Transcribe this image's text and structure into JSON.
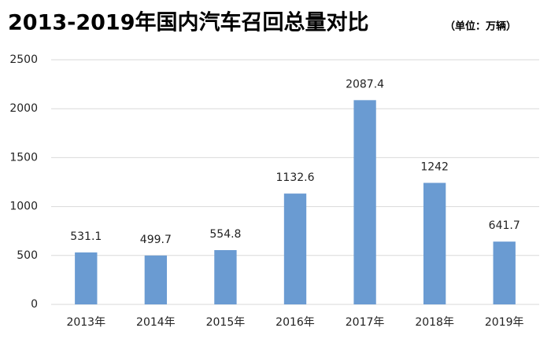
{
  "chart_data": {
    "type": "bar",
    "title": "2013-2019年国内汽车召回总量对比",
    "subtitle": "（单位：万辆）",
    "categories": [
      "2013年",
      "2014年",
      "2015年",
      "2016年",
      "2017年",
      "2018年",
      "2019年"
    ],
    "values": [
      531.1,
      499.7,
      554.8,
      1132.6,
      2087.4,
      1242,
      641.7
    ],
    "color": "#6a9bd2",
    "ylim": [
      0,
      2500
    ],
    "yticks": [
      0,
      500,
      1000,
      1500,
      2000,
      2500
    ],
    "grid": true
  }
}
